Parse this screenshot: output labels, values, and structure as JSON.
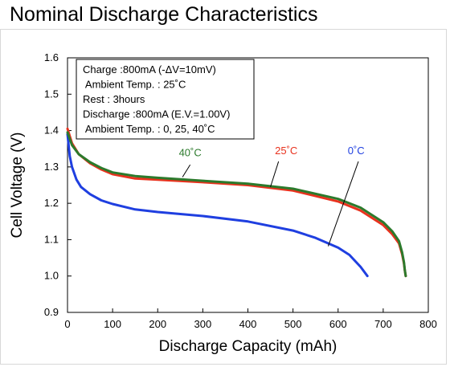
{
  "page": {
    "title": "Nominal Discharge Characteristics"
  },
  "chart_data": {
    "type": "line",
    "xlabel": "Discharge Capacity (mAh)",
    "ylabel": "Cell Voltage (V)",
    "xlim": [
      0,
      800
    ],
    "ylim": [
      0.9,
      1.6
    ],
    "xticks": [
      0,
      100,
      200,
      300,
      400,
      500,
      600,
      700,
      800
    ],
    "yticks": [
      0.9,
      1.0,
      1.1,
      1.2,
      1.3,
      1.4,
      1.5,
      1.6
    ],
    "xtick_labels": [
      "0",
      "100",
      "200",
      "300",
      "400",
      "500",
      "600",
      "700",
      "800"
    ],
    "ytick_labels": [
      "0.9",
      "1.0",
      "1.1",
      "1.2",
      "1.3",
      "1.4",
      "1.5",
      "1.6"
    ],
    "grid": false,
    "annotation": {
      "lines": [
        "Charge :800mA (-ΔV=10mV)",
        " Ambient Temp. : 25˚C",
        "Rest : 3hours",
        "Discharge :800mA (E.V.=1.00V)",
        " Ambient Temp. : 0, 25, 40˚C"
      ]
    },
    "series": [
      {
        "name": "0˚C",
        "color": "#1f3fe0",
        "label_pos": [
          640,
          1.335
        ],
        "pointer": [
          [
            645,
            1.315
          ],
          [
            578,
            1.082
          ]
        ],
        "x": [
          0,
          5,
          10,
          20,
          30,
          50,
          75,
          100,
          150,
          200,
          300,
          400,
          500,
          550,
          600,
          625,
          650,
          665
        ],
        "y": [
          1.39,
          1.33,
          1.3,
          1.265,
          1.245,
          1.225,
          1.208,
          1.198,
          1.183,
          1.176,
          1.165,
          1.15,
          1.125,
          1.105,
          1.078,
          1.058,
          1.025,
          1.0
        ]
      },
      {
        "name": "25˚C",
        "color": "#e8321e",
        "label_pos": [
          485,
          1.335
        ],
        "pointer": [
          [
            468,
            1.315
          ],
          [
            450,
            1.245
          ]
        ],
        "x": [
          0,
          10,
          25,
          50,
          75,
          100,
          150,
          200,
          300,
          400,
          500,
          600,
          650,
          700,
          720,
          735,
          742,
          746,
          748,
          750
        ],
        "y": [
          1.405,
          1.365,
          1.335,
          1.31,
          1.293,
          1.28,
          1.268,
          1.265,
          1.258,
          1.25,
          1.235,
          1.205,
          1.18,
          1.14,
          1.115,
          1.09,
          1.06,
          1.035,
          1.015,
          1.0
        ]
      },
      {
        "name": "40˚C",
        "color": "#2c7a2c",
        "label_pos": [
          272,
          1.33
        ],
        "pointer": [
          [
            272,
            1.306
          ],
          [
            255,
            1.272
          ]
        ],
        "x": [
          0,
          10,
          25,
          50,
          75,
          100,
          150,
          200,
          300,
          400,
          500,
          600,
          650,
          700,
          720,
          735,
          742,
          746,
          748,
          750
        ],
        "y": [
          1.395,
          1.36,
          1.335,
          1.313,
          1.297,
          1.285,
          1.275,
          1.27,
          1.262,
          1.254,
          1.24,
          1.212,
          1.188,
          1.148,
          1.123,
          1.096,
          1.065,
          1.038,
          1.016,
          1.0
        ]
      }
    ]
  }
}
